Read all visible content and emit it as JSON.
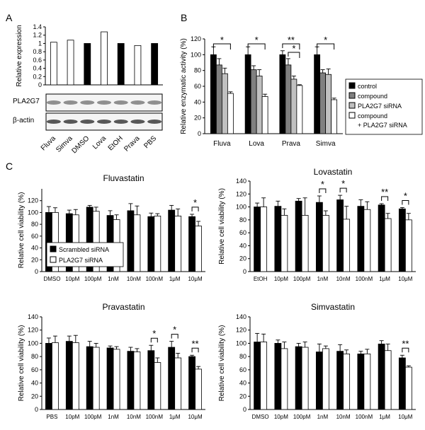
{
  "panel_labels": {
    "a": "A",
    "b": "B",
    "c": "C"
  },
  "colors": {
    "black": "#000000",
    "dark_gray": "#808080",
    "light_gray": "#c0c0c0",
    "white": "#ffffff"
  },
  "blot": {
    "rows": [
      "PLA2G7",
      "β-actin"
    ]
  },
  "legend_b": [
    "control",
    "compound",
    "PLA2G7 siRNA",
    "compound",
    "+ PLA2G7 siRNA"
  ],
  "legend_c": [
    "Scrambled siRNA",
    "PLA2G7 siRNA"
  ],
  "chart_data": [
    {
      "id": "A",
      "type": "bar",
      "title": "",
      "ylabel": "Relative expression",
      "xlabel": "",
      "ylim": [
        0,
        1.4
      ],
      "yticks": [
        "0",
        "0.2",
        "0.4",
        "0.6",
        "0.8",
        "1",
        "1.2",
        "1.4"
      ],
      "categories": [
        "Fluva",
        "Simva",
        "DMSO",
        "Lova",
        "EtOH",
        "Prava",
        "PBS"
      ],
      "values": [
        1.03,
        1.08,
        1.0,
        1.28,
        1.0,
        0.95,
        1.0
      ],
      "fills": [
        "white",
        "white",
        "black",
        "white",
        "black",
        "white",
        "black"
      ]
    },
    {
      "id": "B",
      "type": "bar",
      "title": "",
      "ylabel": "Relative enzymatic activity (%)",
      "xlabel": "",
      "ylim": [
        0,
        120
      ],
      "yticks": [
        "0",
        "20",
        "40",
        "60",
        "80",
        "100",
        "120"
      ],
      "categories": [
        "Fluva",
        "Lova",
        "Prava",
        "Simva"
      ],
      "series": [
        {
          "name": "control",
          "values": [
            100,
            100,
            100,
            100
          ],
          "errors": [
            10,
            10,
            5,
            10
          ]
        },
        {
          "name": "compound",
          "values": [
            87,
            81,
            87,
            77
          ],
          "errors": [
            8,
            5,
            8,
            4
          ]
        },
        {
          "name": "PLA2G7 siRNA",
          "values": [
            76,
            73,
            69,
            75
          ],
          "errors": [
            7,
            8,
            4,
            7
          ]
        },
        {
          "name": "compound + PLA2G7 siRNA",
          "values": [
            51,
            47,
            61,
            43
          ],
          "errors": [
            2,
            3,
            1,
            2
          ]
        }
      ],
      "annotations": [
        "*",
        "*",
        "**",
        "*",
        "*"
      ]
    },
    {
      "id": "Fluvastatin",
      "type": "bar",
      "title": "Fluvastatin",
      "ylabel": "Relative cell viability (%)",
      "xlabel": "",
      "ylim": [
        0,
        140
      ],
      "yticks": [
        "0",
        "20",
        "40",
        "60",
        "80",
        "100",
        "120"
      ],
      "categories": [
        "DMSO",
        "10pM",
        "100pM",
        "1nM",
        "10nM",
        "100nM",
        "1μM",
        "10μM"
      ],
      "series": [
        {
          "name": "Scrambled siRNA",
          "values": [
            100,
            98,
            109,
            95,
            103,
            93,
            104,
            93
          ],
          "errors": [
            10,
            6,
            3,
            8,
            12,
            6,
            8,
            4
          ]
        },
        {
          "name": "PLA2G7 siRNA",
          "values": [
            100,
            96,
            102,
            88,
            96,
            94,
            94,
            77
          ],
          "errors": [
            8,
            9,
            7,
            8,
            15,
            4,
            12,
            8
          ]
        }
      ],
      "annotations": [
        "*"
      ]
    },
    {
      "id": "Lovastatin",
      "type": "bar",
      "title": "Lovastatin",
      "ylabel": "Relative cell viability (%)",
      "xlabel": "",
      "ylim": [
        0,
        140
      ],
      "yticks": [
        "0",
        "20",
        "40",
        "60",
        "80",
        "100",
        "120",
        "140"
      ],
      "categories": [
        "EtOH",
        "10pM",
        "100pM",
        "1nM",
        "10nM",
        "100nM",
        "1μM",
        "10μM"
      ],
      "series": [
        {
          "name": "Scrambled siRNA",
          "values": [
            100,
            101,
            109,
            107,
            111,
            101,
            103,
            97
          ],
          "errors": [
            6,
            8,
            4,
            10,
            7,
            10,
            2,
            2
          ]
        },
        {
          "name": "PLA2G7 siRNA",
          "values": [
            100,
            87,
            87,
            87,
            81,
            96,
            82,
            80
          ],
          "errors": [
            14,
            10,
            27,
            7,
            20,
            12,
            8,
            10
          ]
        }
      ],
      "annotations": [
        "*",
        "*",
        "**",
        "*"
      ]
    },
    {
      "id": "Pravastatin",
      "type": "bar",
      "title": "Pravastatin",
      "ylabel": "Relative cell viability (%)",
      "xlabel": "",
      "ylim": [
        0,
        140
      ],
      "yticks": [
        "0",
        "20",
        "40",
        "60",
        "80",
        "100",
        "120",
        "140"
      ],
      "categories": [
        "PBS",
        "10pM",
        "100pM",
        "1nM",
        "10nM",
        "100nM",
        "1μM",
        "10μM"
      ],
      "series": [
        {
          "name": "Scrambled siRNA",
          "values": [
            100,
            103,
            95,
            93,
            88,
            89,
            94,
            80
          ],
          "errors": [
            8,
            8,
            8,
            3,
            6,
            8,
            9,
            2
          ]
        },
        {
          "name": "PLA2G7 siRNA",
          "values": [
            101,
            101,
            94,
            91,
            87,
            71,
            78,
            61
          ],
          "errors": [
            10,
            11,
            6,
            4,
            5,
            7,
            7,
            4
          ]
        }
      ],
      "annotations": [
        "*",
        "*",
        "**"
      ]
    },
    {
      "id": "Simvastatin",
      "type": "bar",
      "title": "Simvastatin",
      "ylabel": "Relative cell viability (%)",
      "xlabel": "",
      "ylim": [
        0,
        140
      ],
      "yticks": [
        "0",
        "20",
        "40",
        "60",
        "80",
        "100",
        "120",
        "140"
      ],
      "categories": [
        "DMSO",
        "10pM",
        "100pM",
        "1nM",
        "10nM",
        "100nM",
        "1μM",
        "10μM"
      ],
      "series": [
        {
          "name": "Scrambled siRNA",
          "values": [
            102,
            100,
            95,
            87,
            88,
            84,
            99,
            78
          ],
          "errors": [
            13,
            5,
            5,
            12,
            10,
            4,
            5,
            4
          ]
        },
        {
          "name": "PLA2G7 siRNA",
          "values": [
            102,
            92,
            94,
            92,
            84,
            84,
            89,
            64
          ],
          "errors": [
            12,
            10,
            8,
            4,
            6,
            7,
            10,
            2
          ]
        }
      ],
      "annotations": [
        "**"
      ]
    }
  ]
}
